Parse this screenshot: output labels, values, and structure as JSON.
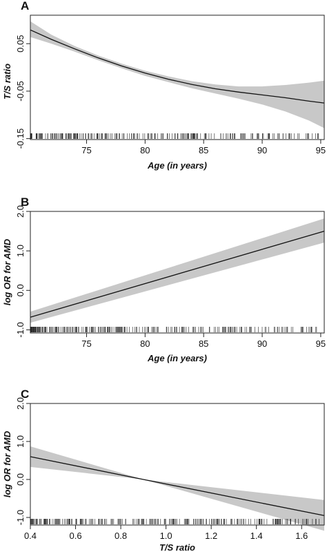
{
  "colors": {
    "band": "#c8c8c8",
    "line": "#111111",
    "frame": "#222222",
    "rug": "#222222"
  },
  "chart_data": [
    {
      "panel": "A",
      "type": "line",
      "xlabel": "Age (in years)",
      "ylabel": "T/S ratio",
      "xlim": [
        70.2,
        95.3
      ],
      "ylim": [
        -0.152,
        0.11
      ],
      "xticks": [
        75,
        80,
        85,
        90,
        95
      ],
      "yticks": [
        0.05,
        -0.05,
        -0.15
      ],
      "xtick_labels": [
        "75",
        "80",
        "85",
        "90",
        "95"
      ],
      "ytick_labels": [
        "0.05",
        "-0.05",
        "-0.15"
      ],
      "rug": true,
      "series": [
        {
          "x": [
            70.2,
            72,
            74,
            76,
            78,
            80,
            82,
            84,
            86,
            88,
            90,
            92,
            94,
            95.3
          ],
          "y": [
            0.079,
            0.059,
            0.039,
            0.02,
            0.003,
            -0.012,
            -0.025,
            -0.036,
            -0.045,
            -0.052,
            -0.058,
            -0.064,
            -0.071,
            -0.075
          ],
          "lower": [
            0.064,
            0.05,
            0.033,
            0.015,
            -0.002,
            -0.018,
            -0.031,
            -0.044,
            -0.055,
            -0.066,
            -0.078,
            -0.093,
            -0.112,
            -0.128
          ],
          "upper": [
            0.097,
            0.069,
            0.045,
            0.025,
            0.008,
            -0.007,
            -0.019,
            -0.029,
            -0.036,
            -0.04,
            -0.04,
            -0.037,
            -0.032,
            -0.028
          ]
        }
      ]
    },
    {
      "panel": "B",
      "type": "line",
      "xlabel": "Age (in years)",
      "ylabel": "log OR for AMD",
      "xlim": [
        70.2,
        95.3
      ],
      "ylim": [
        -1.08,
        2.0
      ],
      "xticks": [
        75,
        80,
        85,
        90,
        95
      ],
      "yticks": [
        2.0,
        1.0,
        0.0,
        -1.0
      ],
      "xtick_labels": [
        "75",
        "80",
        "85",
        "90",
        "95"
      ],
      "ytick_labels": [
        "2.0",
        "1.0",
        "0.0",
        "-1.0"
      ],
      "rug": true,
      "series": [
        {
          "x": [
            70.2,
            95.3
          ],
          "y": [
            -0.68,
            1.5
          ],
          "lower": [
            -0.82,
            1.21
          ],
          "upper": [
            -0.54,
            1.82
          ]
        }
      ]
    },
    {
      "panel": "C",
      "type": "line",
      "xlabel": "T/S ratio",
      "ylabel": "log OR for AMD",
      "xlim": [
        0.4,
        1.7
      ],
      "ylim": [
        -1.2,
        2.0
      ],
      "xticks": [
        0.4,
        0.6,
        0.8,
        1.0,
        1.2,
        1.4,
        1.6
      ],
      "yticks": [
        2.0,
        1.0,
        0.0,
        -1.0
      ],
      "xtick_labels": [
        "0.4",
        "0.6",
        "0.8",
        "1.0",
        "1.2",
        "1.4",
        "1.6"
      ],
      "ytick_labels": [
        "2.0",
        "1.0",
        "0.0",
        "-1.0"
      ],
      "rug": true,
      "series": [
        {
          "x": [
            0.4,
            0.9,
            1.7
          ],
          "y": [
            0.6,
            0.0,
            -0.95
          ],
          "lower": [
            0.33,
            0.0,
            -1.35
          ],
          "upper": [
            0.87,
            0.0,
            -0.54
          ]
        }
      ]
    }
  ]
}
